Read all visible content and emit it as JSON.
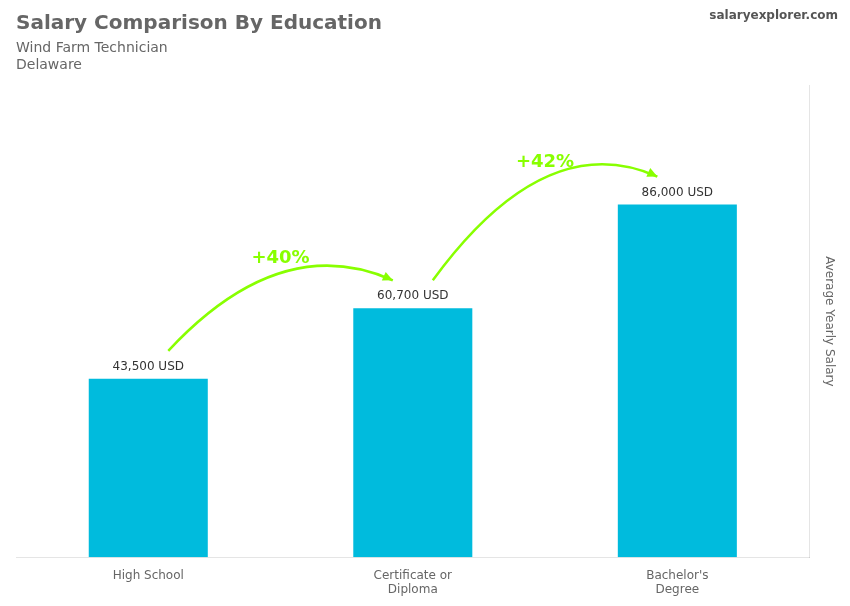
{
  "chart_data": {
    "type": "bar",
    "title": "Salary Comparison By Education",
    "subtitle": [
      "Wind Farm Technician",
      "Delaware"
    ],
    "categories": [
      "High School",
      "Certificate or\nDiploma",
      "Bachelor's\nDegree"
    ],
    "values": [
      43500,
      60700,
      86000
    ],
    "value_labels": [
      "43,500 USD",
      "60,700 USD",
      "86,000 USD"
    ],
    "data_labels": true,
    "color": "#00bbdd",
    "ylabel": "Average Yearly Salary",
    "ylim": [
      0,
      115000
    ],
    "tick_labels": "x",
    "grid": false,
    "annotations": [
      {
        "text": "+40%",
        "from": "High School",
        "to": "Certificate or\nDiploma",
        "color": "#88ff00"
      },
      {
        "text": "+42%",
        "from": "Certificate or\nDiploma",
        "to": "Bachelor's\nDegree",
        "color": "#88ff00"
      },
      {
        "text": "salaryexplorer.com"
      }
    ]
  }
}
